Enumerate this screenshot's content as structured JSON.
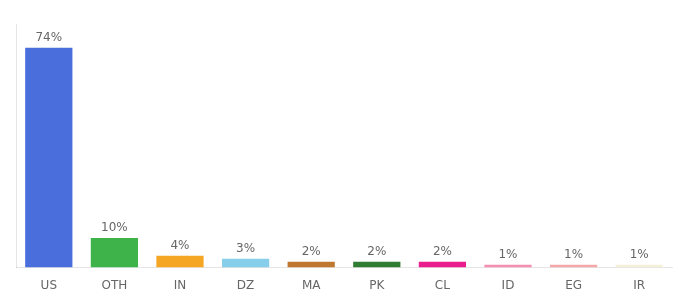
{
  "chart_data": {
    "type": "bar",
    "categories": [
      "US",
      "OTH",
      "IN",
      "DZ",
      "MA",
      "PK",
      "CL",
      "ID",
      "EG",
      "IR"
    ],
    "values": [
      74,
      10,
      4,
      3,
      2,
      2,
      2,
      1,
      1,
      1
    ],
    "value_labels": [
      "74%",
      "10%",
      "4%",
      "3%",
      "2%",
      "2%",
      "2%",
      "1%",
      "1%",
      "1%"
    ],
    "colors": [
      "#4a6fdc",
      "#3db34a",
      "#f5a623",
      "#87ceeb",
      "#c07830",
      "#2e7d32",
      "#e91e8c",
      "#f48fb1",
      "#f4a9a8",
      "#f5f0d8"
    ],
    "ylim": [
      0,
      82
    ],
    "grid": false,
    "data_labels": true,
    "tick_labels": "x"
  }
}
